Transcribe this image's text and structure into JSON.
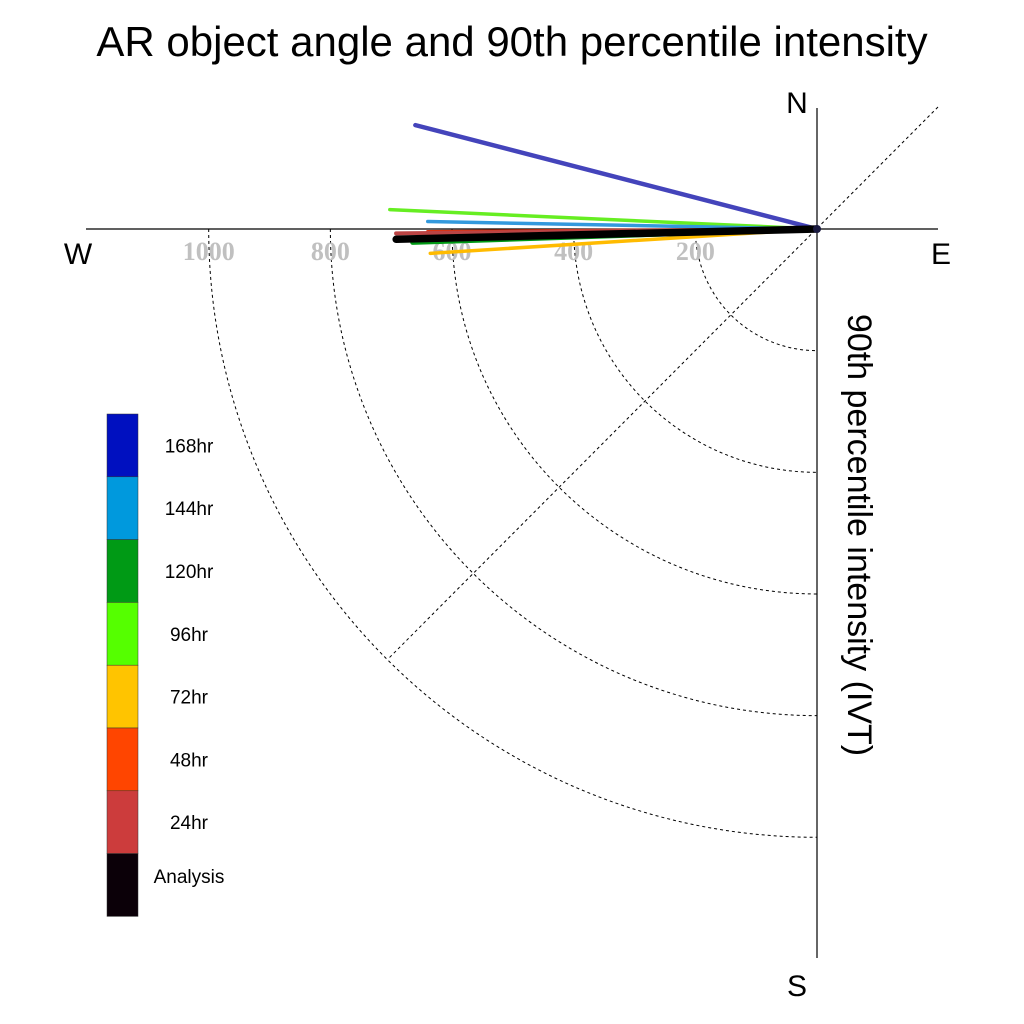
{
  "chart_data": {
    "type": "polar-line",
    "title": "AR object angle and 90th percentile intensity",
    "ylabel": "90th percentile intensity (IVT)",
    "compass": {
      "north": "N",
      "south": "S",
      "east": "E",
      "west": "W"
    },
    "radial_ticks": [
      {
        "value": 200,
        "label": "200"
      },
      {
        "value": 400,
        "label": "400"
      },
      {
        "value": 600,
        "label": "600"
      },
      {
        "value": 800,
        "label": "800"
      },
      {
        "value": 1000,
        "label": "1000"
      }
    ],
    "rlim": [
      0,
      1200
    ],
    "grid": true,
    "legend": {
      "placement": "left",
      "entries": [
        {
          "name": "168hr",
          "color": "#0010c0"
        },
        {
          "name": "144hr",
          "color": "#0099dd"
        },
        {
          "name": "120hr",
          "color": "#009a15"
        },
        {
          "name": "96hr",
          "color": "#55ff00"
        },
        {
          "name": "72hr",
          "color": "#ffc400"
        },
        {
          "name": "48hr",
          "color": "#ff4500"
        },
        {
          "name": "24hr",
          "color": "#cc3c3c"
        },
        {
          "name": "Analysis",
          "color": "#0b0008"
        }
      ]
    },
    "series": [
      {
        "name": "168hr",
        "color": "#4444bb",
        "intensity": 682,
        "angle_deg": 194.5,
        "width": 4.5
      },
      {
        "name": "96hr",
        "color": "#66ee22",
        "intensity": 703,
        "angle_deg": 182.6,
        "width": 3.5
      },
      {
        "name": "144hr",
        "color": "#3399dd",
        "intensity": 640,
        "angle_deg": 181.1,
        "width": 3.5
      },
      {
        "name": "48hr",
        "color": "#dd3311",
        "intensity": 640,
        "angle_deg": 179.6,
        "width": 3.5
      },
      {
        "name": "24hr",
        "color": "#bb4444",
        "intensity": 692,
        "angle_deg": 179.4,
        "width": 4
      },
      {
        "name": "120hr",
        "color": "#009a15",
        "intensity": 665,
        "angle_deg": 178.1,
        "width": 5
      },
      {
        "name": "72hr",
        "color": "#ffbb00",
        "intensity": 637,
        "angle_deg": 176.4,
        "width": 3.5
      },
      {
        "name": "Analysis",
        "color": "#000000",
        "intensity": 692,
        "angle_deg": 178.6,
        "width": 7.5
      }
    ]
  }
}
